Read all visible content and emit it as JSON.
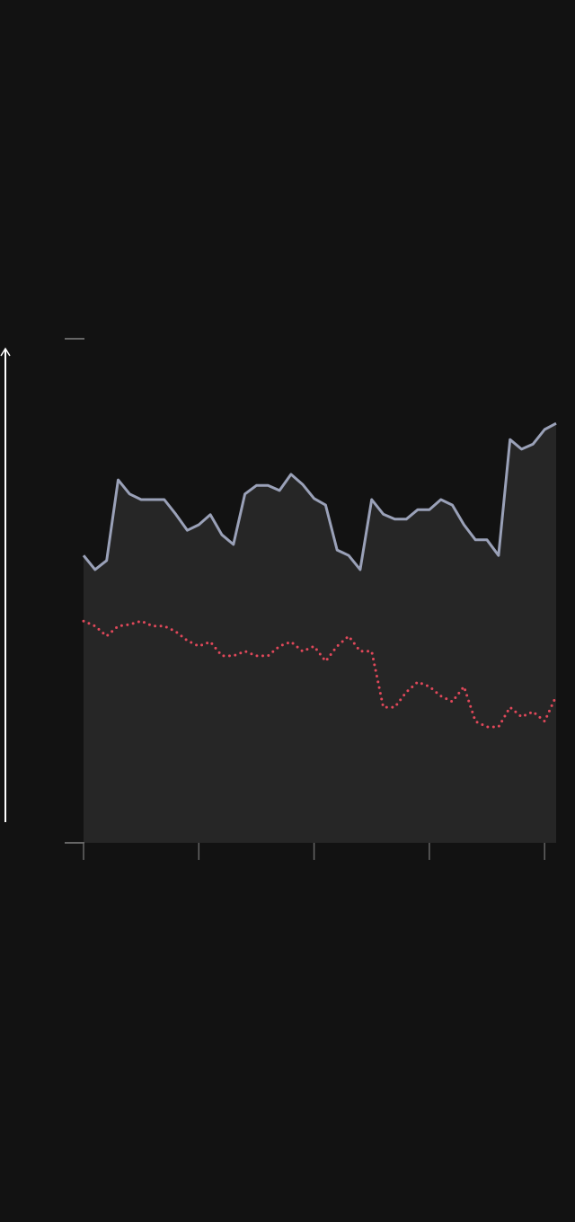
{
  "chart_data": {
    "type": "line",
    "x": [
      0,
      1,
      2,
      3,
      4,
      5,
      6,
      7,
      8,
      9,
      10,
      11,
      12,
      13,
      14,
      15,
      16,
      17,
      18,
      19,
      20,
      21,
      22,
      23,
      24,
      25,
      26,
      27,
      28,
      29,
      30,
      31,
      32,
      33,
      34,
      35,
      36,
      37,
      38,
      39,
      40,
      41
    ],
    "series": [
      {
        "color": "#9aa1b8",
        "fill": "#262626",
        "style": "solid",
        "values": [
          57.0,
          54.2,
          56.0,
          72.0,
          69.2,
          68.1,
          68.1,
          68.1,
          65.2,
          62.0,
          63.1,
          65.1,
          61.1,
          59.2,
          69.2,
          70.9,
          70.9,
          69.9,
          73.1,
          71.1,
          68.3,
          67.0,
          58.1,
          57.0,
          54.2,
          68.1,
          65.2,
          64.2,
          64.2,
          66.1,
          66.1,
          68.1,
          67.0,
          63.1,
          60.1,
          60.1,
          57.0,
          80.0,
          78.1,
          79.1,
          82.0,
          83.2
        ]
      },
      {
        "color": "#e0485a",
        "style": "dotted",
        "values": [
          44.0,
          43.0,
          41.0,
          43.0,
          43.3,
          44.0,
          43.0,
          43.0,
          41.9,
          40.1,
          39.0,
          39.9,
          37.1,
          37.1,
          38.0,
          37.1,
          37.1,
          39.0,
          39.9,
          38.0,
          39.0,
          36.0,
          39.0,
          41.0,
          38.0,
          38.0,
          26.9,
          26.9,
          29.9,
          31.9,
          31.0,
          29.1,
          28.0,
          31.0,
          24.1,
          23.0,
          23.0,
          26.9,
          25.0,
          26.0,
          24.1,
          29.1
        ]
      }
    ],
    "xlim": [
      0,
      41
    ],
    "xticks": [
      0,
      10,
      20,
      30,
      40
    ],
    "ylim": [
      0,
      100
    ],
    "yticks": [
      0,
      100
    ],
    "background": "#121212"
  }
}
